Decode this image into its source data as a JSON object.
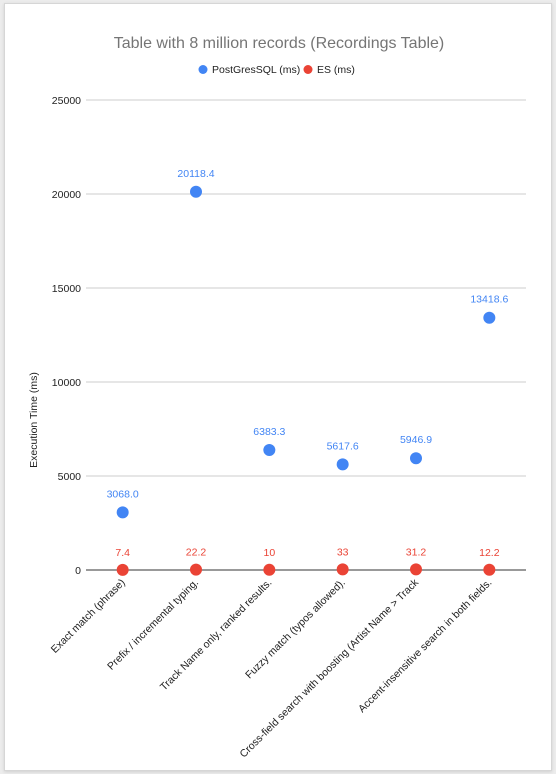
{
  "chart_data": {
    "type": "scatter",
    "title": "Table with 8 million records (Recordings Table)",
    "xlabel": "",
    "ylabel": "Execution Time (ms)",
    "ylim": [
      0,
      25000
    ],
    "yticks": [
      0,
      5000,
      10000,
      15000,
      20000,
      25000
    ],
    "grid": true,
    "legend_position": "top",
    "categories": [
      "Exact match (phrase)",
      "Prefix / incremental typing.",
      "Track Name only, ranked results.",
      "Fuzzy match (typos allowed).",
      "Cross-field search with boosting (Artist Name > Track",
      "Accent-insensitive search in both fields."
    ],
    "series": [
      {
        "name": "PostGresSQL (ms)",
        "color": "#4285f4",
        "values": [
          3068.0,
          20118.4,
          6383.3,
          5617.6,
          5946.9,
          13418.6
        ],
        "labels": [
          "3068.0",
          "20118.4",
          "6383.3",
          "5617.6",
          "5946.9",
          "13418.6"
        ]
      },
      {
        "name": "ES (ms)",
        "color": "#ea4335",
        "values": [
          7.4,
          22.2,
          10,
          33,
          31.2,
          12.2
        ],
        "labels": [
          "7.4",
          "22.2",
          "10",
          "33",
          "31.2",
          "12.2"
        ]
      }
    ]
  }
}
